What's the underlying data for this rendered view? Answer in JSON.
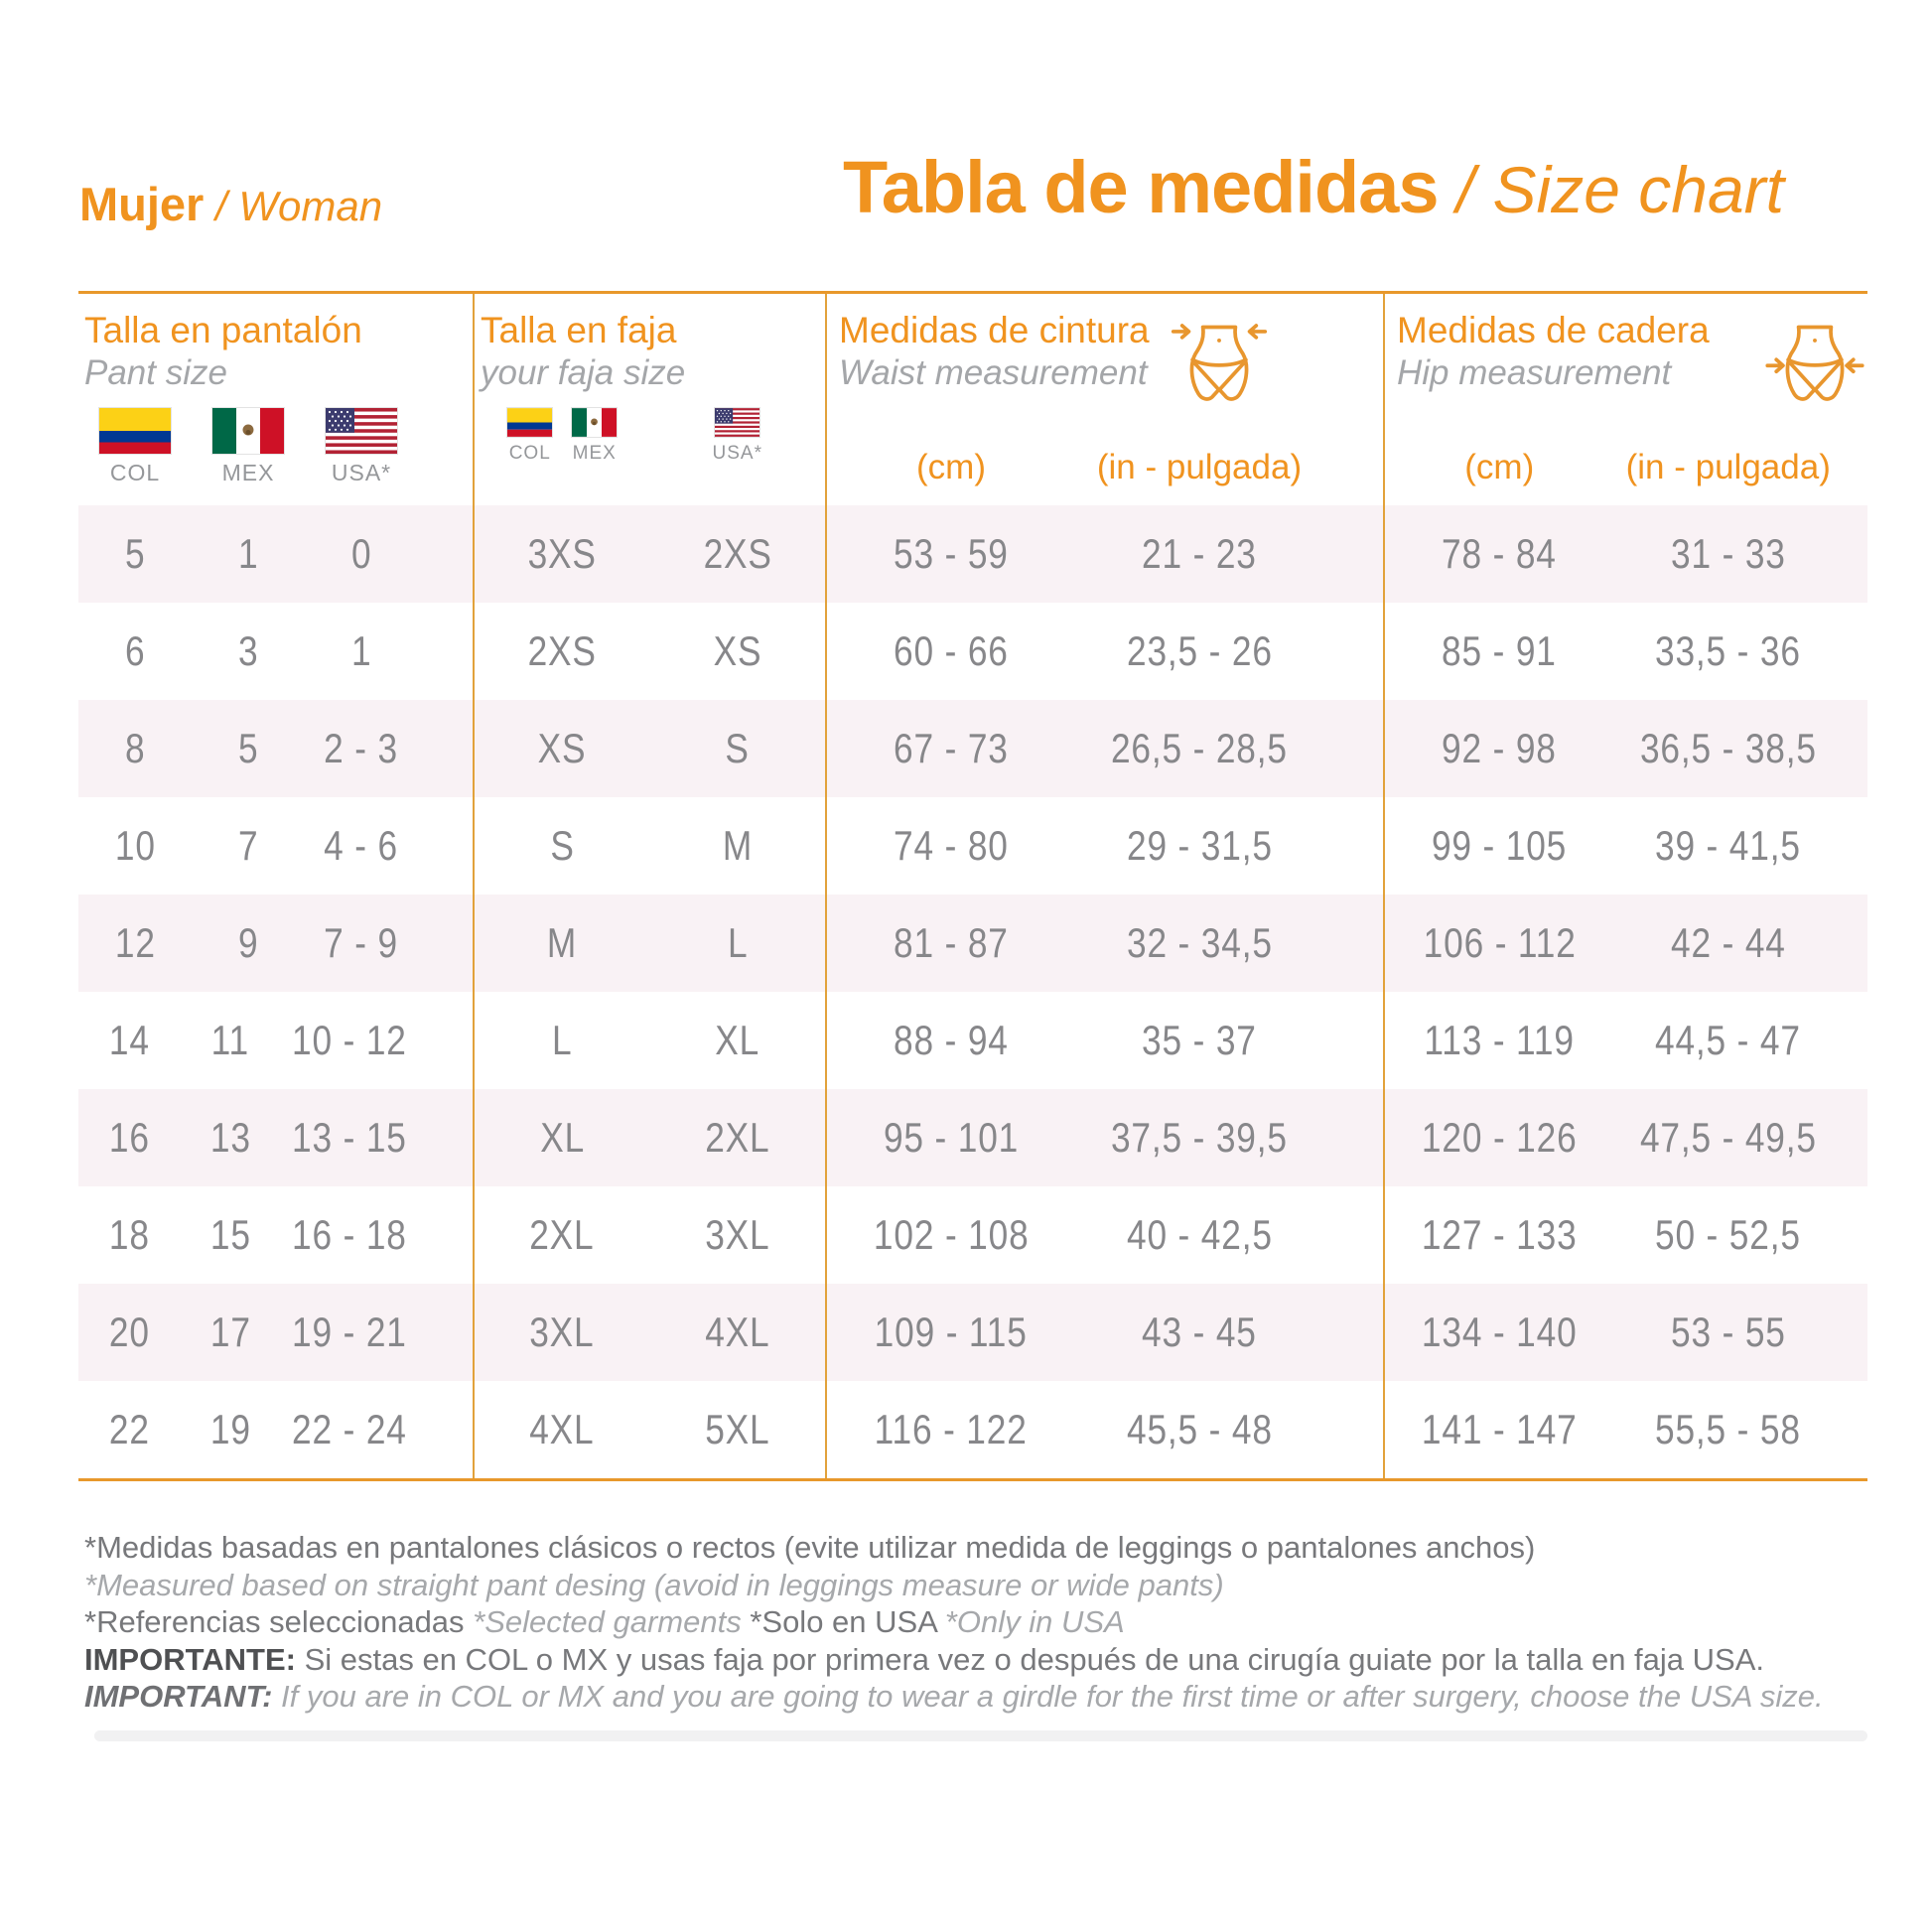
{
  "header": {
    "section_title_es": "Mujer",
    "section_divider": " / ",
    "section_title_en": "Woman",
    "page_title_es": "Tabla de medidas",
    "page_divider": " / ",
    "page_title_en": "Size chart"
  },
  "flag_labels": {
    "col": "COL",
    "mex": "MEX",
    "usa": "USA*"
  },
  "groups": {
    "pant": {
      "title_es": "Talla en pantalón",
      "title_en": "Pant size"
    },
    "faja": {
      "title_es": "Talla en faja",
      "title_en": "your faja size"
    },
    "waist": {
      "title_es": "Medidas de cintura",
      "title_en": "Waist measurement",
      "unit_cm": "(cm)",
      "unit_in": "(in - pulgada)"
    },
    "hip": {
      "title_es": "Medidas de cadera",
      "title_en": "Hip measurement",
      "unit_cm": "(cm)",
      "unit_in": "(in - pulgada)"
    }
  },
  "rows": [
    {
      "pant": [
        "5",
        "1",
        "0"
      ],
      "faja": [
        "3XS",
        "2XS"
      ],
      "waist": [
        "53 - 59",
        "21 - 23"
      ],
      "hip": [
        "78 - 84",
        "31 - 33"
      ]
    },
    {
      "pant": [
        "6",
        "3",
        "1"
      ],
      "faja": [
        "2XS",
        "XS"
      ],
      "waist": [
        "60 - 66",
        "23,5 - 26"
      ],
      "hip": [
        "85 - 91",
        "33,5 - 36"
      ]
    },
    {
      "pant": [
        "8",
        "5",
        "2 - 3"
      ],
      "faja": [
        "XS",
        "S"
      ],
      "waist": [
        "67 - 73",
        "26,5 - 28,5"
      ],
      "hip": [
        "92 - 98",
        "36,5 - 38,5"
      ]
    },
    {
      "pant": [
        "10",
        "7",
        "4 - 6"
      ],
      "faja": [
        "S",
        "M"
      ],
      "waist": [
        "74 - 80",
        "29 - 31,5"
      ],
      "hip": [
        "99 - 105",
        "39 - 41,5"
      ]
    },
    {
      "pant": [
        "12",
        "9",
        "7 - 9"
      ],
      "faja": [
        "M",
        "L"
      ],
      "waist": [
        "81 - 87",
        "32 - 34,5"
      ],
      "hip": [
        "106 - 112",
        "42 - 44"
      ]
    },
    {
      "pant": [
        "14",
        "11",
        "10 - 12"
      ],
      "faja": [
        "L",
        "XL"
      ],
      "waist": [
        "88 - 94",
        "35 - 37"
      ],
      "hip": [
        "113 - 119",
        "44,5 - 47"
      ]
    },
    {
      "pant": [
        "16",
        "13",
        "13 - 15"
      ],
      "faja": [
        "XL",
        "2XL"
      ],
      "waist": [
        "95 - 101",
        "37,5 - 39,5"
      ],
      "hip": [
        "120 - 126",
        "47,5 - 49,5"
      ]
    },
    {
      "pant": [
        "18",
        "15",
        "16 - 18"
      ],
      "faja": [
        "2XL",
        "3XL"
      ],
      "waist": [
        "102 - 108",
        "40 - 42,5"
      ],
      "hip": [
        "127 - 133",
        "50 - 52,5"
      ]
    },
    {
      "pant": [
        "20",
        "17",
        "19 - 21"
      ],
      "faja": [
        "3XL",
        "4XL"
      ],
      "waist": [
        "109 - 115",
        "43 - 45"
      ],
      "hip": [
        "134 - 140",
        "53 - 55"
      ]
    },
    {
      "pant": [
        "22",
        "19",
        "22 - 24"
      ],
      "faja": [
        "4XL",
        "5XL"
      ],
      "waist": [
        "116 - 122",
        "45,5 - 48"
      ],
      "hip": [
        "141 - 147",
        "55,5 - 58"
      ]
    }
  ],
  "footnotes": {
    "line1_es": "*Medidas basadas en pantalones clásicos o rectos (evite utilizar medida de leggings o pantalones anchos)",
    "line2_en": "*Measured based on straight pant desing (avoid in leggings measure or wide pants)",
    "line3_seg1_es": "*Referencias seleccionadas ",
    "line3_seg2_en": "*Selected garments ",
    "line3_seg3_es": "*Solo en USA ",
    "line3_seg4_en": "*Only in USA",
    "line4_label": "IMPORTANTE:",
    "line4_text": " Si estas en COL o MX y usas faja por primera vez o después de una cirugía guiate por la talla en faja USA.",
    "line5_label": "IMPORTANT:",
    "line5_text": " If you are in COL or MX and you are going to wear a girdle for the first time or after surgery, choose the USA size."
  },
  "colors": {
    "accent_orange": "#F0931F",
    "line_orange": "#E2A23B",
    "row_pink": "#F9F2F5",
    "value_gray": "#87878A"
  }
}
